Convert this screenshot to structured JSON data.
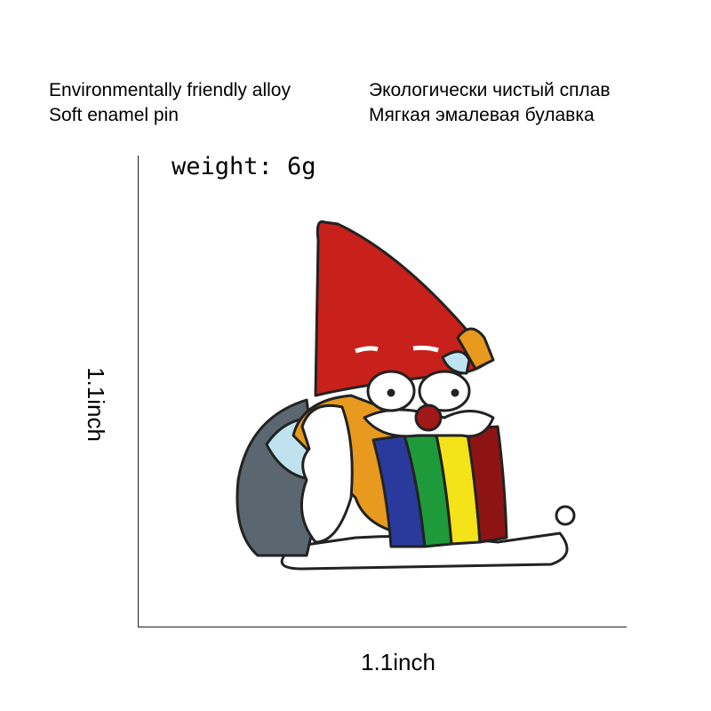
{
  "features": {
    "en": [
      "Environmentally friendly alloy",
      "Soft enamel pin"
    ],
    "ru": [
      "Экологически чистый сплав",
      "Мягкая эмалевая булавка"
    ]
  },
  "weight": "weight: 6g",
  "dimensions": {
    "height": "1.1inch",
    "width": "1.1inch"
  },
  "colors": {
    "hat": "#c8201a",
    "body": "#5b6770",
    "rainbow": [
      "#2a3a9c",
      "#1e9a3a",
      "#f5e31a",
      "#8e1414"
    ],
    "orange": "#e89a1e",
    "outline": "#222222"
  }
}
